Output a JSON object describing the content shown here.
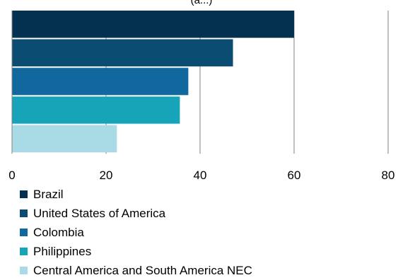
{
  "chart_data": {
    "type": "bar",
    "orientation": "horizontal",
    "title": "(a...)",
    "categories": [
      "Brazil",
      "United States of America",
      "Colombia",
      "Philippines",
      "Central America and South America NEC"
    ],
    "values": [
      60,
      47,
      37.5,
      35.7,
      22.3
    ],
    "colors": [
      "#04314f",
      "#0a4c72",
      "#10689e",
      "#17a4b8",
      "#a9dbe6"
    ],
    "xlim": [
      0,
      80
    ],
    "xticks": [
      "0",
      "20",
      "40",
      "60",
      "80"
    ],
    "grid": true,
    "legend_position": "bottom"
  }
}
